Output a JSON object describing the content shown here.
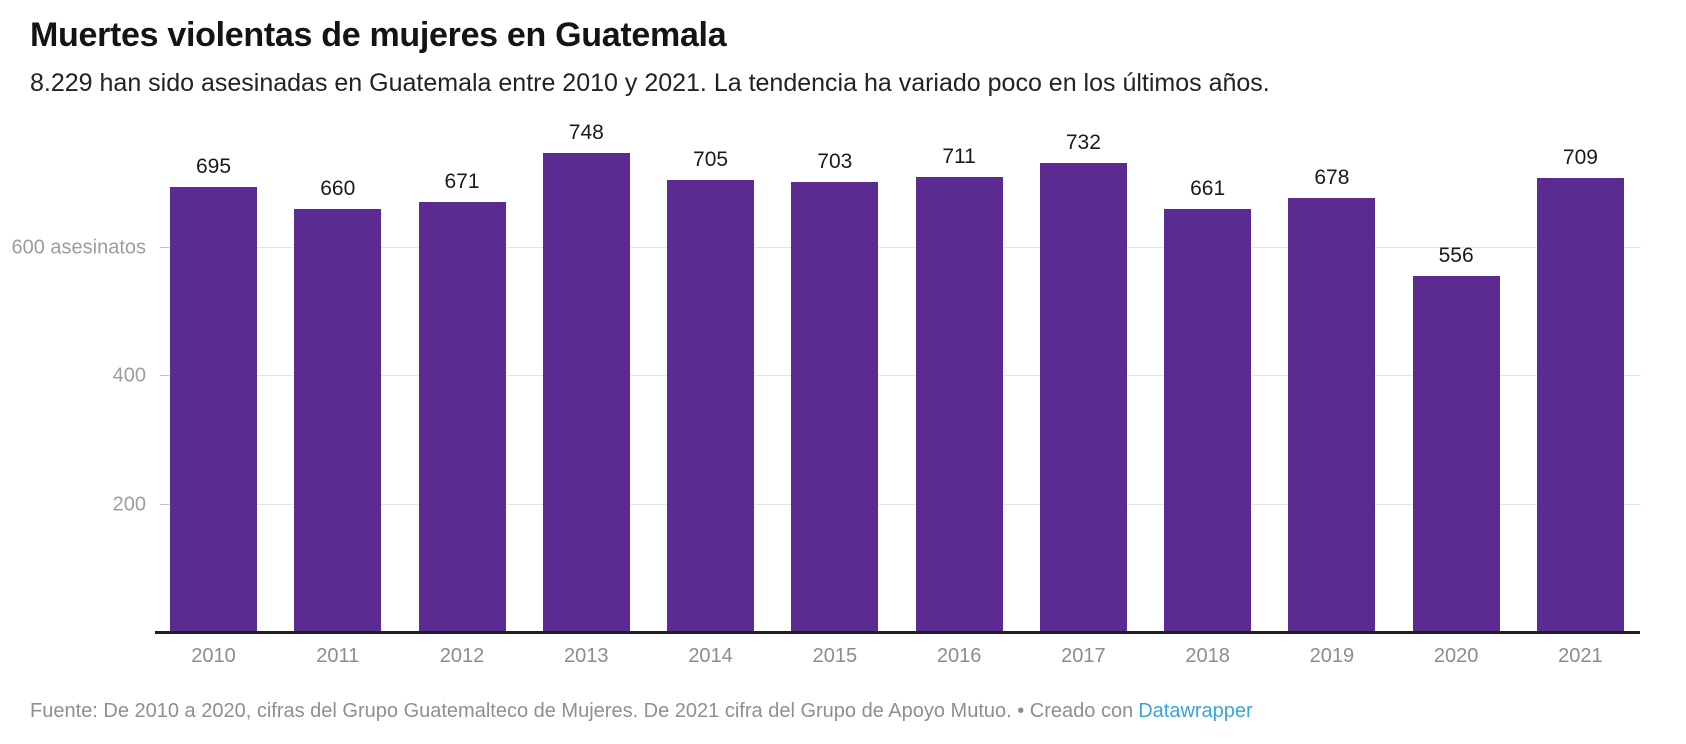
{
  "header": {
    "title": "Muertes violentas de mujeres en Guatemala",
    "subtitle": "8.229 han sido asesinadas en Guatemala entre 2010 y 2021. La tendencia ha variado poco en los últimos años."
  },
  "chart_data": {
    "type": "bar",
    "title": "Muertes violentas de mujeres en Guatemala",
    "categories": [
      "2010",
      "2011",
      "2012",
      "2013",
      "2014",
      "2015",
      "2016",
      "2017",
      "2018",
      "2019",
      "2020",
      "2021"
    ],
    "values": [
      695,
      660,
      671,
      748,
      705,
      703,
      711,
      732,
      661,
      678,
      556,
      709
    ],
    "xlabel": "",
    "ylabel": "asesinatos",
    "ylim": [
      0,
      771
    ],
    "yticks": [
      {
        "value": 200,
        "label": "200"
      },
      {
        "value": 400,
        "label": "400"
      },
      {
        "value": 600,
        "label": "600 asesinatos"
      }
    ],
    "grid": true,
    "value_labels": true,
    "legend": "none",
    "bar_color": "#5b2b92"
  },
  "footer": {
    "source_text": "Fuente: De 2010 a 2020, cifras del Grupo Guatemalteco de Mujeres. De 2021 cifra del Grupo de Apoyo Mutuo. • Creado con",
    "link_label": "Datawrapper",
    "link_color": "#3ba3dc"
  },
  "colors": {
    "bar": "#5b2b92",
    "baseline": "#1f1f1f",
    "gridline": "#e4e4e4",
    "y_label_text": "#9d9d9d",
    "x_label_text": "#8c8c8c",
    "footer_text": "#8f8f8f",
    "link": "#3ba3dc"
  }
}
